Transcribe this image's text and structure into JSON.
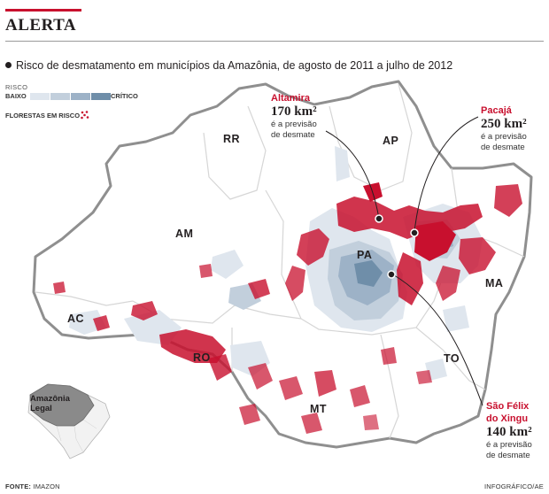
{
  "headline": "ALERTA",
  "subtitle": "Risco de desmatamento em municípios da Amazônia, de agosto de 2011 a julho de 2012",
  "legend": {
    "title": "RISCO",
    "low": "BAIXO",
    "high": "CRÍTICO",
    "scale_colors": [
      "#dfe6ee",
      "#c2cfdc",
      "#9db2c7",
      "#6f8ea9"
    ],
    "forest": "FLORESTAS EM RISCO",
    "forest_color": "#c8102e"
  },
  "states": {
    "RR": "RR",
    "AP": "AP",
    "AM": "AM",
    "PA": "PA",
    "MA": "MA",
    "AC": "AC",
    "RO": "RO",
    "TO": "TO",
    "MT": "MT"
  },
  "callouts": {
    "altamira": {
      "place": "Altamira",
      "area": "170 km²",
      "line1": "é a previsão",
      "line2": "de desmate"
    },
    "pacaja": {
      "place": "Pacajá",
      "area": "250 km²",
      "line1": "é a previsão",
      "line2": "de desmate"
    },
    "sao_felix": {
      "place1": "São Félix",
      "place2": "do Xingu",
      "area": "140 km²",
      "line1": "é a previsão",
      "line2": "de desmate"
    }
  },
  "inset": {
    "line1": "Amazônia",
    "line2": "Legal"
  },
  "footer": {
    "source_label": "FONTE:",
    "source": "IMAZON",
    "credit": "INFOGRÁFICO/AE"
  }
}
